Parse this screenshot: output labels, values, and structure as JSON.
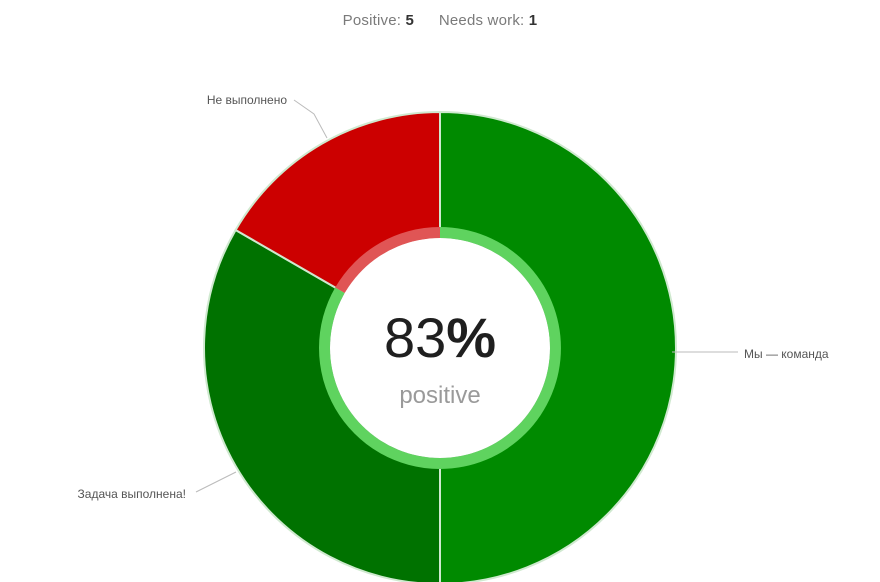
{
  "summary": {
    "positive_label": "Positive:",
    "positive_count": "5",
    "needs_work_label": "Needs work:",
    "needs_work_count": "1"
  },
  "center": {
    "percent_value": "83",
    "percent_sign": "%",
    "caption": "positive"
  },
  "chart_data": {
    "type": "pie",
    "donut": true,
    "start_angle_deg": 0,
    "direction": "clockwise",
    "slices": [
      {
        "label": "Мы — команда",
        "value": 3,
        "color": "#008a00"
      },
      {
        "label": "Задача выполнена!",
        "value": 2,
        "color": "#007200"
      },
      {
        "label": "Не выполнено",
        "value": 1,
        "color": "#cc0000"
      }
    ],
    "positive_count": 5,
    "needs_work_count": 1,
    "positive_percent": 83,
    "inner_ring_color_positive": "#5fd35f",
    "inner_ring_color_negative": "#e05555",
    "divider_color": "#cfe9cf",
    "leader_line_color": "#bbbbbb",
    "legend": "none"
  }
}
